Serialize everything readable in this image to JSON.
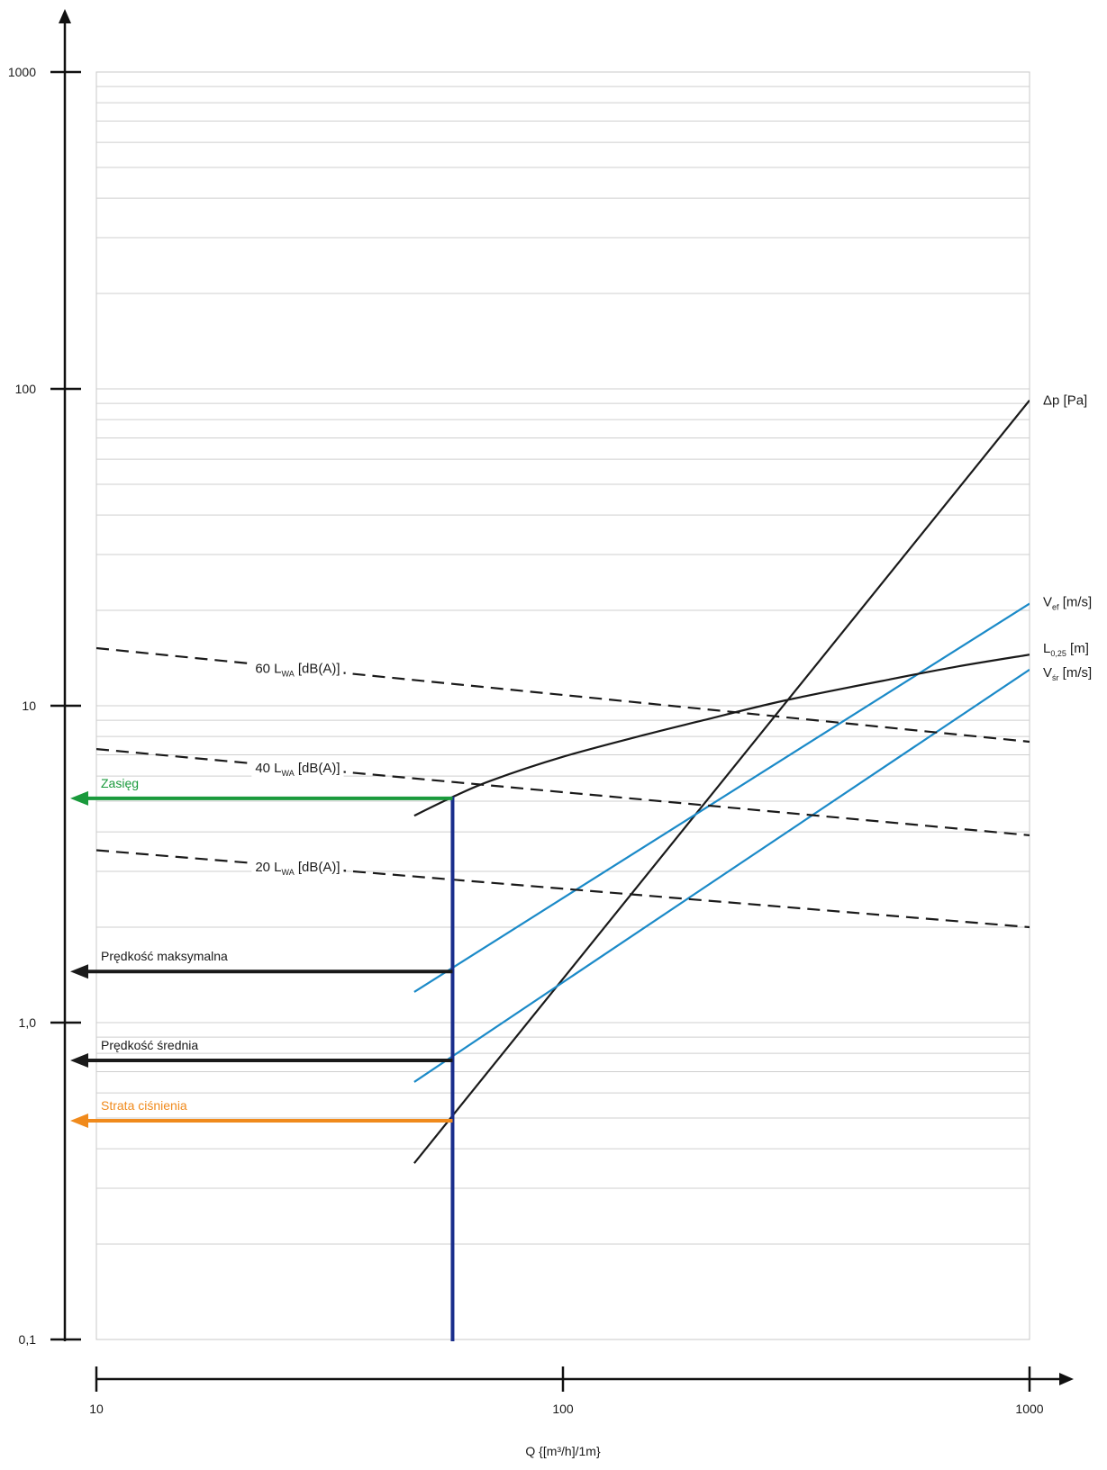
{
  "chart_data": {
    "type": "line",
    "x_scale": "log",
    "y_scale": "log",
    "xlim": [
      10,
      1000
    ],
    "ylim": [
      0.1,
      1000
    ],
    "xlabel": "Q {[m³/h]/1m}",
    "ylabel": "",
    "grid": true,
    "x_ticks": [
      {
        "value": 10,
        "label": "10"
      },
      {
        "value": 100,
        "label": "100"
      },
      {
        "value": 1000,
        "label": "1000"
      }
    ],
    "y_ticks": [
      {
        "value": 0.1,
        "label": "0,1"
      },
      {
        "value": 1,
        "label": "1,0"
      },
      {
        "value": 10,
        "label": "10"
      },
      {
        "value": 100,
        "label": "100"
      },
      {
        "value": 1000,
        "label": "1000"
      }
    ],
    "series": [
      {
        "key": "dp",
        "name": "Δp [Pa]",
        "label_main": "Δp",
        "label_sub": "",
        "label_unit": "[Pa]",
        "color": "#1a1a1a",
        "style": "solid",
        "shape": "straight",
        "points": [
          [
            48,
            0.36
          ],
          [
            1000,
            92
          ]
        ]
      },
      {
        "key": "vef",
        "name": "Vef [m/s]",
        "label_main": "V",
        "label_sub": "ef",
        "label_unit": "[m/s]",
        "color": "#1b8ac8",
        "style": "solid",
        "shape": "straight",
        "points": [
          [
            48,
            1.25
          ],
          [
            1000,
            21
          ]
        ]
      },
      {
        "key": "vsr",
        "name": "Všr [m/s]",
        "label_main": "V",
        "label_sub": "śr",
        "label_unit": "[m/s]",
        "color": "#1b8ac8",
        "style": "solid",
        "shape": "straight",
        "points": [
          [
            48,
            0.65
          ],
          [
            1000,
            13
          ]
        ]
      },
      {
        "key": "l025",
        "name": "L0,25 [m]",
        "label_main": "L",
        "label_sub": "0,25",
        "label_unit": "[m]",
        "color": "#1a1a1a",
        "style": "solid",
        "shape": "curve",
        "points": [
          [
            48,
            4.5
          ],
          [
            58,
            5.15
          ],
          [
            70,
            5.8
          ],
          [
            100,
            6.9
          ],
          [
            150,
            8.1
          ],
          [
            200,
            9.0
          ],
          [
            300,
            10.4
          ],
          [
            500,
            12.1
          ],
          [
            700,
            13.3
          ],
          [
            1000,
            14.5
          ]
        ]
      },
      {
        "key": "lwa60",
        "name": "60 LWA [dB(A)]",
        "label_main": "60 L",
        "label_sub": "WA",
        "label_unit": "[dB(A)]",
        "color": "#1a1a1a",
        "style": "dashed",
        "shape": "straight",
        "points": [
          [
            10,
            15.2
          ],
          [
            1000,
            7.7
          ]
        ]
      },
      {
        "key": "lwa40",
        "name": "40 LWA [dB(A)]",
        "label_main": "40 L",
        "label_sub": "WA",
        "label_unit": "[dB(A)]",
        "color": "#1a1a1a",
        "style": "dashed",
        "shape": "straight",
        "points": [
          [
            10,
            7.3
          ],
          [
            1000,
            3.9
          ]
        ]
      },
      {
        "key": "lwa20",
        "name": "20 LWA [dB(A)]",
        "label_main": "20 L",
        "label_sub": "WA",
        "label_unit": "[dB(A)]",
        "color": "#1a1a1a",
        "style": "dashed",
        "shape": "straight",
        "points": [
          [
            10,
            3.5
          ],
          [
            1000,
            2.0
          ]
        ]
      }
    ],
    "reading": {
      "x": 58,
      "color": "#1a2e8c",
      "readouts": [
        {
          "key": "zasieg",
          "label": "Zasięg",
          "y": 5.1,
          "color": "#1a9a3c"
        },
        {
          "key": "predkosc-maksymalna",
          "label": "Prędkość maksymalna",
          "y": 1.45,
          "color": "#1a1a1a"
        },
        {
          "key": "predkosc-srednia",
          "label": "Prędkość średnia",
          "y": 0.76,
          "color": "#1a1a1a"
        },
        {
          "key": "strata-cisnienia",
          "label": "Strata ciśnienia",
          "y": 0.49,
          "color": "#f08a1c"
        }
      ]
    }
  }
}
